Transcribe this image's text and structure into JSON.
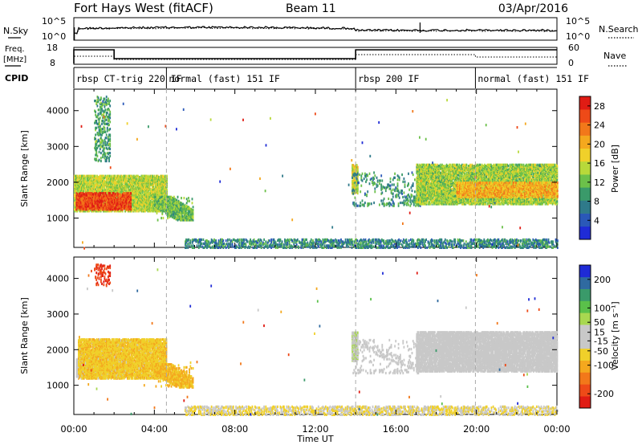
{
  "header": {
    "radar": "Fort Hays West (fitACF)",
    "beam": "Beam 11",
    "date": "03/Apr/2016"
  },
  "top_panels": {
    "nsky_label": "N.Sky",
    "nsearch_label": "N.Search",
    "noise_ticks": [
      "10^5",
      "10^0"
    ],
    "freq_label_1": "Freq.",
    "freq_label_2": "[MHz]",
    "freq_ticks": [
      "18",
      "8"
    ],
    "nave_label": "Nave",
    "nave_ticks": [
      "60",
      "0"
    ],
    "cpid_label": "CPID"
  },
  "cpid_segments": [
    {
      "label": "rbsp CT-trig 220 IF",
      "start_h": 0.0
    },
    {
      "label": "normal (fast) 151 IF",
      "start_h": 4.6
    },
    {
      "label": "rbsp 200 IF",
      "start_h": 14.0
    },
    {
      "label": "normal (fast) 151 IF",
      "start_h": 19.95
    }
  ],
  "chart_data": [
    {
      "type": "heatmap",
      "title": "",
      "xlabel": "Time UT",
      "ylabel": "Slant Range [km]",
      "xlim": [
        0,
        24
      ],
      "ylim": [
        180,
        4600
      ],
      "x_ticks": [
        "00:00",
        "04:00",
        "08:00",
        "12:00",
        "16:00",
        "20:00",
        "00:00"
      ],
      "y_ticks": [
        1000,
        2000,
        3000,
        4000
      ],
      "colorbar": {
        "label": "Power [dB]",
        "ticks": [
          4,
          8,
          12,
          16,
          20,
          24,
          28
        ],
        "range": [
          0,
          30
        ],
        "colors": [
          "#1f2bd6",
          "#2a58b8",
          "#2f7a8a",
          "#3a9a6a",
          "#6cc04a",
          "#b8d93a",
          "#f0d02a",
          "#f4a81e",
          "#f2781a",
          "#ee4a18",
          "#e01c14"
        ]
      },
      "regions": [
        {
          "name": "evening band",
          "t": [
            0.0,
            4.6
          ],
          "range_km": [
            1200,
            2200
          ],
          "value": 15
        },
        {
          "name": "evening core",
          "t": [
            0.1,
            2.8
          ],
          "range_km": [
            1250,
            1700
          ],
          "value": 26
        },
        {
          "name": "descending echo",
          "t": [
            4.0,
            5.9
          ],
          "range_km": [
            950,
            1600
          ],
          "value": 12
        },
        {
          "name": "high range echo",
          "t": [
            1.0,
            1.8
          ],
          "range_km": [
            2600,
            4400
          ],
          "value": 10
        },
        {
          "name": "ground scatter band",
          "t": [
            5.5,
            24.0
          ],
          "range_km": [
            180,
            420
          ],
          "value": 8
        },
        {
          "name": "dawn patch",
          "t": [
            13.8,
            14.1
          ],
          "range_km": [
            1700,
            2500
          ],
          "value": 16
        },
        {
          "name": "dawn arc",
          "t": [
            13.8,
            17.2
          ],
          "range_km": [
            1350,
            2300
          ],
          "value": 9
        },
        {
          "name": "day band",
          "t": [
            17.0,
            24.0
          ],
          "range_km": [
            1400,
            2500
          ],
          "value": 14
        },
        {
          "name": "day core",
          "t": [
            19.0,
            24.0
          ],
          "range_km": [
            1600,
            2000
          ],
          "value": 20
        }
      ]
    },
    {
      "type": "heatmap",
      "title": "",
      "xlabel": "Time UT",
      "ylabel": "Slant Range [km]",
      "xlim": [
        0,
        24
      ],
      "ylim": [
        180,
        4600
      ],
      "x_ticks": [
        "00:00",
        "04:00",
        "08:00",
        "12:00",
        "16:00",
        "20:00",
        "00:00"
      ],
      "y_ticks": [
        1000,
        2000,
        3000,
        4000
      ],
      "colorbar": {
        "label": "Velocity [m s⁻¹]",
        "ticks": [
          200,
          100,
          50,
          15,
          -15,
          -50,
          -100,
          -200
        ],
        "range": [
          -250,
          250
        ],
        "colors": [
          "#e01c14",
          "#ee4a18",
          "#f2781a",
          "#f4a81e",
          "#f0d02a",
          "#c8c8c8",
          "#c8c8c8",
          "#a8d850",
          "#5ac04a",
          "#3a9a6a",
          "#2f6aa0",
          "#1f2bd6"
        ]
      },
      "regions": [
        {
          "name": "evening ground scatter",
          "t": [
            0.1,
            2.6
          ],
          "range_km": [
            1250,
            1800
          ],
          "value": 0
        },
        {
          "name": "evening flow",
          "t": [
            0.2,
            4.6
          ],
          "range_km": [
            1200,
            2300
          ],
          "value": -70
        },
        {
          "name": "descending flow",
          "t": [
            4.0,
            5.9
          ],
          "range_km": [
            950,
            1600
          ],
          "value": -90
        },
        {
          "name": "high range flow",
          "t": [
            1.0,
            1.8
          ],
          "range_km": [
            3800,
            4400
          ],
          "value": -200
        },
        {
          "name": "low range flow",
          "t": [
            5.5,
            24.0
          ],
          "range_km": [
            180,
            420
          ],
          "value": -40
        },
        {
          "name": "dawn patch",
          "t": [
            13.8,
            14.1
          ],
          "range_km": [
            1700,
            2500
          ],
          "value": 40
        },
        {
          "name": "dawn arc",
          "t": [
            13.8,
            17.2
          ],
          "range_km": [
            1350,
            2300
          ],
          "value": 0
        },
        {
          "name": "day band",
          "t": [
            17.0,
            24.0
          ],
          "range_km": [
            1400,
            2500
          ],
          "value": 0
        }
      ]
    }
  ]
}
